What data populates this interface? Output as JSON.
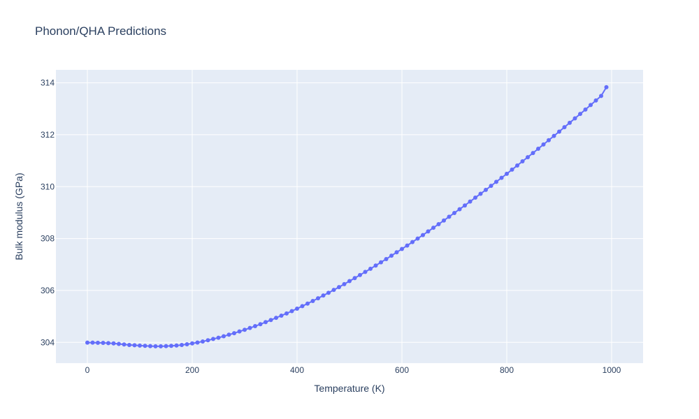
{
  "chart_data": {
    "type": "scatter",
    "mode": "lines+markers",
    "title": "Phonon/QHA Predictions",
    "xlabel": "Temperature (K)",
    "ylabel": "Bulk modulus (GPa)",
    "xlim": [
      -60,
      1060
    ],
    "ylim": [
      303.2,
      314.5
    ],
    "xticks": [
      0,
      200,
      400,
      600,
      800,
      1000
    ],
    "yticks": [
      304,
      306,
      308,
      310,
      312,
      314
    ],
    "grid": true,
    "colors": {
      "plot_bg": "#e5ecf6",
      "grid": "#ffffff",
      "series": "#636efa",
      "text": "#2a3f5f"
    },
    "series": [
      {
        "x": [
          0,
          10,
          20,
          30,
          40,
          50,
          60,
          70,
          80,
          90,
          100,
          110,
          120,
          130,
          140,
          150,
          160,
          170,
          180,
          190,
          200,
          210,
          220,
          230,
          240,
          250,
          260,
          270,
          280,
          290,
          300,
          310,
          320,
          330,
          340,
          350,
          360,
          370,
          380,
          390,
          400,
          410,
          420,
          430,
          440,
          450,
          460,
          470,
          480,
          490,
          500,
          510,
          520,
          530,
          540,
          550,
          560,
          570,
          580,
          590,
          600,
          610,
          620,
          630,
          640,
          650,
          660,
          670,
          680,
          690,
          700,
          710,
          720,
          730,
          740,
          750,
          760,
          770,
          780,
          790,
          800,
          810,
          820,
          830,
          840,
          850,
          860,
          870,
          880,
          890,
          900,
          910,
          920,
          930,
          940,
          950,
          960,
          970,
          980,
          990
        ],
        "y": [
          303.99,
          303.99,
          303.985,
          303.98,
          303.97,
          303.96,
          303.94,
          303.92,
          303.9,
          303.89,
          303.875,
          303.865,
          303.855,
          303.85,
          303.85,
          303.855,
          303.865,
          303.88,
          303.9,
          303.925,
          303.96,
          303.995,
          304.035,
          304.08,
          304.13,
          304.18,
          304.235,
          304.295,
          304.355,
          304.42,
          304.485,
          304.555,
          304.625,
          304.7,
          304.78,
          304.86,
          304.945,
          305.03,
          305.115,
          305.205,
          305.3,
          305.395,
          305.495,
          305.595,
          305.7,
          305.805,
          305.91,
          306.02,
          306.13,
          306.245,
          306.36,
          306.475,
          306.595,
          306.715,
          306.835,
          306.96,
          307.085,
          307.21,
          307.34,
          307.47,
          307.6,
          307.73,
          307.865,
          308.0,
          308.135,
          308.275,
          308.415,
          308.555,
          308.695,
          308.84,
          308.985,
          309.13,
          309.275,
          309.425,
          309.575,
          309.725,
          309.875,
          310.03,
          310.185,
          310.34,
          310.495,
          310.655,
          310.815,
          310.975,
          311.135,
          311.295,
          311.46,
          311.625,
          311.79,
          311.955,
          312.12,
          312.29,
          312.46,
          312.63,
          312.8,
          312.97,
          313.145,
          313.32,
          313.495,
          313.83
        ]
      }
    ]
  }
}
